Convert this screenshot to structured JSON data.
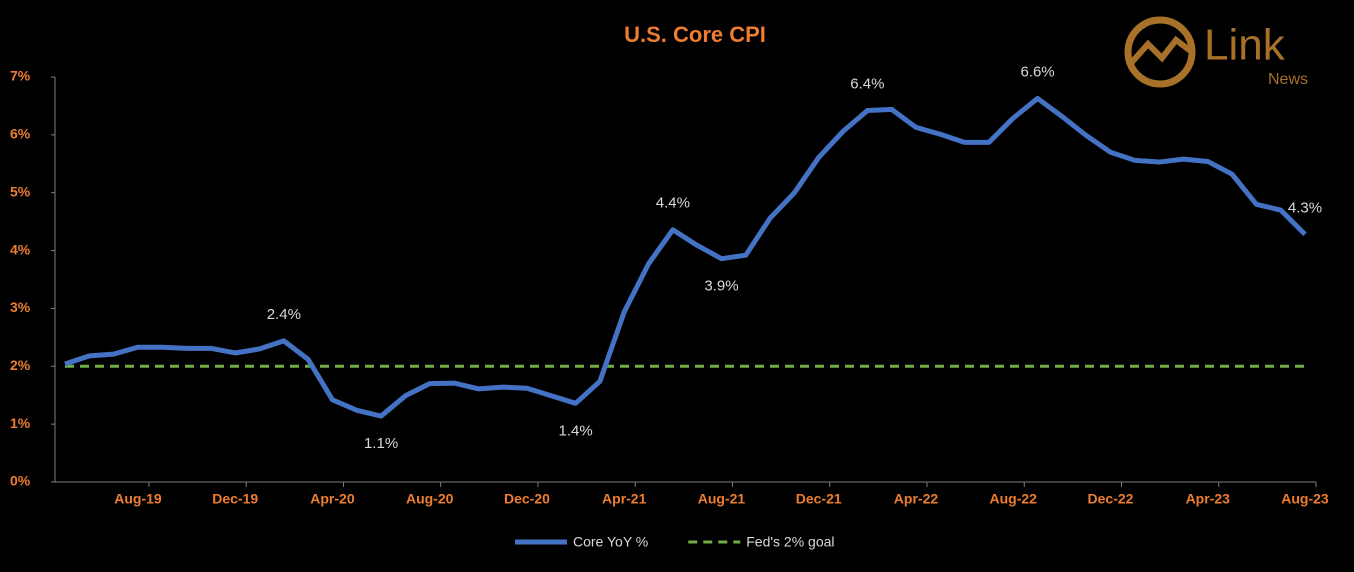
{
  "chart_data": {
    "type": "line",
    "title": "U.S. Core CPI",
    "logo": {
      "text": "Link",
      "subtext": "News"
    },
    "categories": [
      null,
      null,
      null,
      "Aug-19",
      null,
      null,
      null,
      "Dec-19",
      null,
      null,
      null,
      "Apr-20",
      null,
      null,
      null,
      "Aug-20",
      null,
      null,
      null,
      "Dec-20",
      null,
      null,
      null,
      "Apr-21",
      null,
      null,
      null,
      "Aug-21",
      null,
      null,
      null,
      "Dec-21",
      null,
      null,
      null,
      "Apr-22",
      null,
      null,
      null,
      "Aug-22",
      null,
      null,
      null,
      "Dec-22",
      null,
      null,
      null,
      "Apr-23",
      null,
      null,
      null,
      "Aug-23"
    ],
    "series": [
      {
        "name": "Core YoY %",
        "color": "#4472c4",
        "dashed": false,
        "values": [
          2.04,
          2.18,
          2.21,
          2.33,
          2.33,
          2.31,
          2.31,
          2.23,
          2.3,
          2.44,
          2.12,
          1.42,
          1.24,
          1.14,
          1.49,
          1.7,
          1.71,
          1.61,
          1.64,
          1.62,
          1.49,
          1.36,
          1.74,
          2.94,
          3.77,
          4.36,
          4.09,
          3.86,
          3.92,
          4.56,
          5.0,
          5.61,
          6.06,
          6.42,
          6.44,
          6.13,
          6.01,
          5.87,
          5.87,
          6.29,
          6.63,
          6.32,
          5.99,
          5.7,
          5.56,
          5.53,
          5.58,
          5.54,
          5.32,
          4.8,
          4.7,
          4.28
        ],
        "value_labels": [
          null,
          null,
          null,
          null,
          null,
          null,
          null,
          null,
          null,
          "2.4%",
          null,
          null,
          null,
          "1.1%",
          null,
          null,
          null,
          null,
          null,
          null,
          null,
          "1.4%",
          null,
          null,
          null,
          "4.4%",
          null,
          "3.9%",
          null,
          null,
          null,
          null,
          null,
          "6.4%",
          null,
          null,
          null,
          null,
          null,
          null,
          "6.6%",
          null,
          null,
          null,
          null,
          null,
          null,
          null,
          null,
          null,
          null,
          "4.3%"
        ]
      },
      {
        "name": "Fed's 2% goal",
        "color": "#70ad47",
        "dashed": true,
        "values": [
          2,
          2,
          2,
          2,
          2,
          2,
          2,
          2,
          2,
          2,
          2,
          2,
          2,
          2,
          2,
          2,
          2,
          2,
          2,
          2,
          2,
          2,
          2,
          2,
          2,
          2,
          2,
          2,
          2,
          2,
          2,
          2,
          2,
          2,
          2,
          2,
          2,
          2,
          2,
          2,
          2,
          2,
          2,
          2,
          2,
          2,
          2,
          2,
          2,
          2,
          2,
          2
        ]
      }
    ],
    "ylim": [
      0,
      7
    ],
    "yticks": [
      {
        "value": 0,
        "label": "0%"
      },
      {
        "value": 1,
        "label": "1%"
      },
      {
        "value": 2,
        "label": "2%"
      },
      {
        "value": 3,
        "label": "3%"
      },
      {
        "value": 4,
        "label": "4%"
      },
      {
        "value": 5,
        "label": "5%"
      },
      {
        "value": 6,
        "label": "6%"
      },
      {
        "value": 7,
        "label": "7%"
      }
    ],
    "grid": false
  }
}
